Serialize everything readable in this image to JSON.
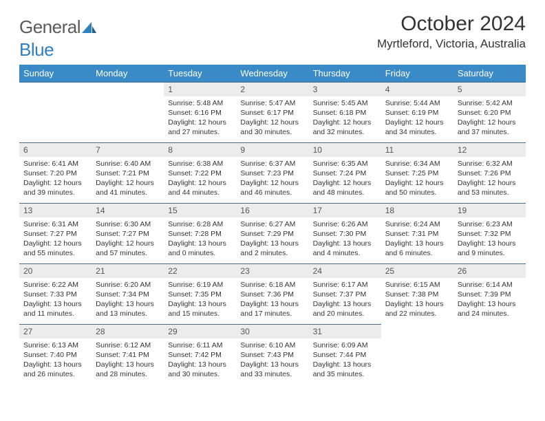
{
  "brand": {
    "name_part1": "General",
    "name_part2": "Blue"
  },
  "title": "October 2024",
  "location": "Myrtleford, Victoria, Australia",
  "colors": {
    "header_bg": "#3a8ac8",
    "daynum_bg": "#ececec",
    "rule": "#4a6a8a",
    "brand_gray": "#5a5a5a",
    "brand_blue": "#2f7fc3"
  },
  "weekdays": [
    "Sunday",
    "Monday",
    "Tuesday",
    "Wednesday",
    "Thursday",
    "Friday",
    "Saturday"
  ],
  "weeks": [
    [
      null,
      null,
      {
        "n": "1",
        "sr": "Sunrise: 5:48 AM",
        "ss": "Sunset: 6:16 PM",
        "dl1": "Daylight: 12 hours",
        "dl2": "and 27 minutes."
      },
      {
        "n": "2",
        "sr": "Sunrise: 5:47 AM",
        "ss": "Sunset: 6:17 PM",
        "dl1": "Daylight: 12 hours",
        "dl2": "and 30 minutes."
      },
      {
        "n": "3",
        "sr": "Sunrise: 5:45 AM",
        "ss": "Sunset: 6:18 PM",
        "dl1": "Daylight: 12 hours",
        "dl2": "and 32 minutes."
      },
      {
        "n": "4",
        "sr": "Sunrise: 5:44 AM",
        "ss": "Sunset: 6:19 PM",
        "dl1": "Daylight: 12 hours",
        "dl2": "and 34 minutes."
      },
      {
        "n": "5",
        "sr": "Sunrise: 5:42 AM",
        "ss": "Sunset: 6:20 PM",
        "dl1": "Daylight: 12 hours",
        "dl2": "and 37 minutes."
      }
    ],
    [
      {
        "n": "6",
        "sr": "Sunrise: 6:41 AM",
        "ss": "Sunset: 7:20 PM",
        "dl1": "Daylight: 12 hours",
        "dl2": "and 39 minutes."
      },
      {
        "n": "7",
        "sr": "Sunrise: 6:40 AM",
        "ss": "Sunset: 7:21 PM",
        "dl1": "Daylight: 12 hours",
        "dl2": "and 41 minutes."
      },
      {
        "n": "8",
        "sr": "Sunrise: 6:38 AM",
        "ss": "Sunset: 7:22 PM",
        "dl1": "Daylight: 12 hours",
        "dl2": "and 44 minutes."
      },
      {
        "n": "9",
        "sr": "Sunrise: 6:37 AM",
        "ss": "Sunset: 7:23 PM",
        "dl1": "Daylight: 12 hours",
        "dl2": "and 46 minutes."
      },
      {
        "n": "10",
        "sr": "Sunrise: 6:35 AM",
        "ss": "Sunset: 7:24 PM",
        "dl1": "Daylight: 12 hours",
        "dl2": "and 48 minutes."
      },
      {
        "n": "11",
        "sr": "Sunrise: 6:34 AM",
        "ss": "Sunset: 7:25 PM",
        "dl1": "Daylight: 12 hours",
        "dl2": "and 50 minutes."
      },
      {
        "n": "12",
        "sr": "Sunrise: 6:32 AM",
        "ss": "Sunset: 7:26 PM",
        "dl1": "Daylight: 12 hours",
        "dl2": "and 53 minutes."
      }
    ],
    [
      {
        "n": "13",
        "sr": "Sunrise: 6:31 AM",
        "ss": "Sunset: 7:27 PM",
        "dl1": "Daylight: 12 hours",
        "dl2": "and 55 minutes."
      },
      {
        "n": "14",
        "sr": "Sunrise: 6:30 AM",
        "ss": "Sunset: 7:27 PM",
        "dl1": "Daylight: 12 hours",
        "dl2": "and 57 minutes."
      },
      {
        "n": "15",
        "sr": "Sunrise: 6:28 AM",
        "ss": "Sunset: 7:28 PM",
        "dl1": "Daylight: 13 hours",
        "dl2": "and 0 minutes."
      },
      {
        "n": "16",
        "sr": "Sunrise: 6:27 AM",
        "ss": "Sunset: 7:29 PM",
        "dl1": "Daylight: 13 hours",
        "dl2": "and 2 minutes."
      },
      {
        "n": "17",
        "sr": "Sunrise: 6:26 AM",
        "ss": "Sunset: 7:30 PM",
        "dl1": "Daylight: 13 hours",
        "dl2": "and 4 minutes."
      },
      {
        "n": "18",
        "sr": "Sunrise: 6:24 AM",
        "ss": "Sunset: 7:31 PM",
        "dl1": "Daylight: 13 hours",
        "dl2": "and 6 minutes."
      },
      {
        "n": "19",
        "sr": "Sunrise: 6:23 AM",
        "ss": "Sunset: 7:32 PM",
        "dl1": "Daylight: 13 hours",
        "dl2": "and 9 minutes."
      }
    ],
    [
      {
        "n": "20",
        "sr": "Sunrise: 6:22 AM",
        "ss": "Sunset: 7:33 PM",
        "dl1": "Daylight: 13 hours",
        "dl2": "and 11 minutes."
      },
      {
        "n": "21",
        "sr": "Sunrise: 6:20 AM",
        "ss": "Sunset: 7:34 PM",
        "dl1": "Daylight: 13 hours",
        "dl2": "and 13 minutes."
      },
      {
        "n": "22",
        "sr": "Sunrise: 6:19 AM",
        "ss": "Sunset: 7:35 PM",
        "dl1": "Daylight: 13 hours",
        "dl2": "and 15 minutes."
      },
      {
        "n": "23",
        "sr": "Sunrise: 6:18 AM",
        "ss": "Sunset: 7:36 PM",
        "dl1": "Daylight: 13 hours",
        "dl2": "and 17 minutes."
      },
      {
        "n": "24",
        "sr": "Sunrise: 6:17 AM",
        "ss": "Sunset: 7:37 PM",
        "dl1": "Daylight: 13 hours",
        "dl2": "and 20 minutes."
      },
      {
        "n": "25",
        "sr": "Sunrise: 6:15 AM",
        "ss": "Sunset: 7:38 PM",
        "dl1": "Daylight: 13 hours",
        "dl2": "and 22 minutes."
      },
      {
        "n": "26",
        "sr": "Sunrise: 6:14 AM",
        "ss": "Sunset: 7:39 PM",
        "dl1": "Daylight: 13 hours",
        "dl2": "and 24 minutes."
      }
    ],
    [
      {
        "n": "27",
        "sr": "Sunrise: 6:13 AM",
        "ss": "Sunset: 7:40 PM",
        "dl1": "Daylight: 13 hours",
        "dl2": "and 26 minutes."
      },
      {
        "n": "28",
        "sr": "Sunrise: 6:12 AM",
        "ss": "Sunset: 7:41 PM",
        "dl1": "Daylight: 13 hours",
        "dl2": "and 28 minutes."
      },
      {
        "n": "29",
        "sr": "Sunrise: 6:11 AM",
        "ss": "Sunset: 7:42 PM",
        "dl1": "Daylight: 13 hours",
        "dl2": "and 30 minutes."
      },
      {
        "n": "30",
        "sr": "Sunrise: 6:10 AM",
        "ss": "Sunset: 7:43 PM",
        "dl1": "Daylight: 13 hours",
        "dl2": "and 33 minutes."
      },
      {
        "n": "31",
        "sr": "Sunrise: 6:09 AM",
        "ss": "Sunset: 7:44 PM",
        "dl1": "Daylight: 13 hours",
        "dl2": "and 35 minutes."
      },
      null,
      null
    ]
  ]
}
